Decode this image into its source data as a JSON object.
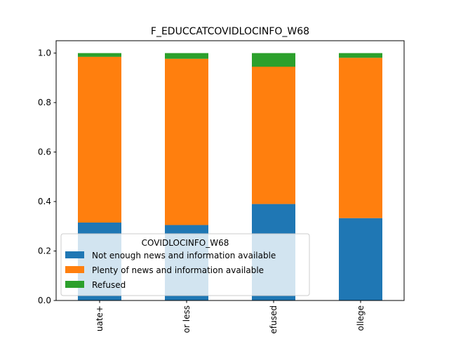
{
  "chart_data": {
    "type": "bar",
    "stacked": true,
    "title": "F_EDUCCATCOVIDLOCINFO_W68",
    "xlabel": "",
    "ylabel": "",
    "ylim": [
      0,
      1.05
    ],
    "yticks": [
      0.0,
      0.2,
      0.4,
      0.6,
      0.8,
      1.0
    ],
    "ytick_labels": [
      "0.0",
      "0.2",
      "0.4",
      "0.6",
      "0.8",
      "1.0"
    ],
    "categories": [
      "uate+",
      "or less",
      "efused",
      "ollege"
    ],
    "legend": {
      "title": "COVIDLOCINFO_W68",
      "position": "lower-left"
    },
    "series": [
      {
        "name": "Not enough news and information available",
        "color": "#1f77b4",
        "values": [
          0.315,
          0.305,
          0.39,
          0.333
        ]
      },
      {
        "name": "Plenty of news and information available",
        "color": "#ff7f0e",
        "values": [
          0.67,
          0.672,
          0.555,
          0.648
        ]
      },
      {
        "name": "Refused",
        "color": "#2ca02c",
        "values": [
          0.015,
          0.023,
          0.055,
          0.019
        ]
      }
    ]
  }
}
